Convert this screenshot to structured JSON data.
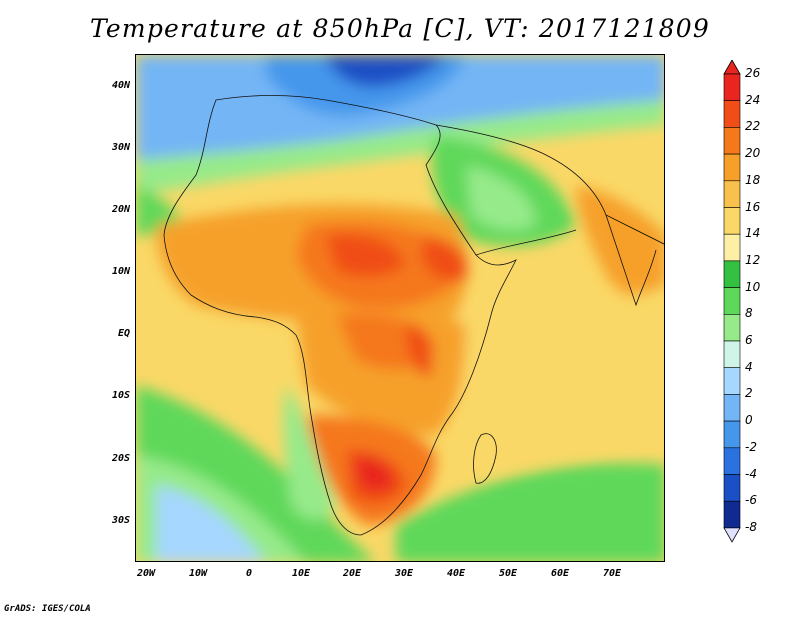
{
  "title": "Temperature at 850hPa [C], VT: 2017121809",
  "credit": "GrADS: IGES/COLA",
  "map": {
    "lat_labels": [
      "40N",
      "30N",
      "20N",
      "10N",
      "EQ",
      "10S",
      "20S",
      "30S"
    ],
    "lon_labels": [
      "20W",
      "10W",
      "0",
      "10E",
      "20E",
      "30E",
      "40E",
      "50E",
      "60E",
      "70E"
    ]
  },
  "colorbar": {
    "labels": [
      "26",
      "24",
      "22",
      "20",
      "18",
      "16",
      "14",
      "12",
      "10",
      "8",
      "6",
      "4",
      "2",
      "0",
      "-2",
      "-4",
      "-6",
      "-8"
    ],
    "colors": [
      "#e8251f",
      "#f04d18",
      "#f5781a",
      "#f6a02a",
      "#f8c04d",
      "#fad867",
      "#fdf0a6",
      "#34c040",
      "#5ed85a",
      "#96ea8a",
      "#cff5e8",
      "#a6d7ff",
      "#73b5f5",
      "#4597ec",
      "#2a72e0",
      "#1b4fc5",
      "#0f2a90",
      "#e0e0ff"
    ]
  }
}
